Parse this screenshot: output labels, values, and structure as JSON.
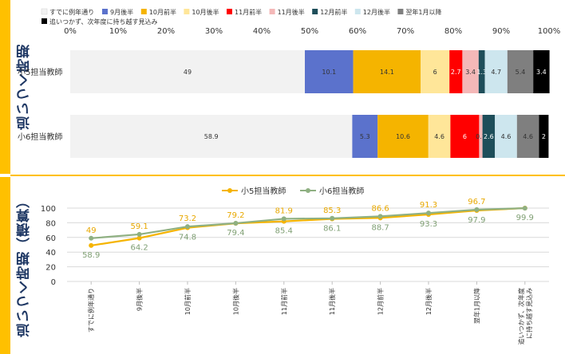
{
  "titles": {
    "top": "追いつく時期",
    "bottom": "追いつく時期（積算）"
  },
  "colors": {
    "accent": "#ffc000",
    "title": "#1f3864"
  },
  "chart_data": [
    {
      "type": "bar",
      "subtype": "stacked-100-horizontal",
      "xlim": [
        0,
        100
      ],
      "x_ticks": [
        "0%",
        "10%",
        "20%",
        "30%",
        "40%",
        "50%",
        "60%",
        "70%",
        "80%",
        "90%",
        "100%"
      ],
      "legend_position": "top",
      "categories": [
        "小5担当教師",
        "小6担当教師"
      ],
      "series": [
        {
          "name": "すでに例年通り",
          "color": "#f2f2f2",
          "values": [
            49,
            58.9
          ],
          "labels": [
            "49",
            "58.9"
          ]
        },
        {
          "name": "9月後半",
          "color": "#5b72cc",
          "values": [
            10.1,
            5.3
          ],
          "labels": [
            "10.1",
            "5.3"
          ]
        },
        {
          "name": "10月前半",
          "color": "#f5b400",
          "values": [
            14.1,
            10.6
          ],
          "labels": [
            "14.1",
            "10.6"
          ]
        },
        {
          "name": "10月後半",
          "color": "#ffe699",
          "values": [
            6,
            4.6
          ],
          "labels": [
            "6",
            "4.6"
          ]
        },
        {
          "name": "11月前半",
          "color": "#ff0000",
          "values": [
            2.7,
            6
          ],
          "labels": [
            "2.7",
            "6"
          ]
        },
        {
          "name": "11月後半",
          "color": "#f4b8b8",
          "values": [
            3.4,
            0.7
          ],
          "labels": [
            "3.4",
            "0.7"
          ]
        },
        {
          "name": "12月前半",
          "color": "#1e4e5a",
          "values": [
            1.3,
            2.6
          ],
          "labels": [
            "1.3",
            "2.6"
          ]
        },
        {
          "name": "12月後半",
          "color": "#cde6ee",
          "values": [
            4.7,
            4.6
          ],
          "labels": [
            "4.7",
            "4.6"
          ]
        },
        {
          "name": "翌年1月以降",
          "color": "#7f7f7f",
          "values": [
            5.4,
            4.6
          ],
          "labels": [
            "5.4",
            "4.6"
          ]
        },
        {
          "name": "追いつかず、次年度に持ち越す見込み",
          "color": "#000000",
          "values": [
            3.4,
            2
          ],
          "labels": [
            "3.4",
            "2"
          ]
        }
      ]
    },
    {
      "type": "line",
      "legend_position": "top",
      "ylim": [
        0,
        100
      ],
      "y_ticks": [
        0,
        20,
        40,
        60,
        80,
        100
      ],
      "categories": [
        "すでに例年通り",
        "9月後半",
        "10月前半",
        "10月後半",
        "11月前半",
        "11月後半",
        "12月前半",
        "12月後半",
        "翌年1月以降",
        "追いつかず、次年度に持ち越す見込み"
      ],
      "series": [
        {
          "name": "小5担当教師",
          "color": "#f5b400",
          "values": [
            49,
            59.1,
            73.2,
            79.2,
            81.9,
            85.3,
            86.6,
            91.3,
            96.7,
            100
          ],
          "labels": [
            "49",
            "59.1",
            "73.2",
            "79.2",
            "81.9",
            "85.3",
            "86.6",
            "91.3",
            "96.7",
            ""
          ]
        },
        {
          "name": "小6担当教師",
          "color": "#8fb082",
          "values": [
            58.9,
            64.2,
            74.8,
            79.4,
            85.4,
            86.1,
            88.7,
            93.3,
            97.9,
            99.9
          ],
          "labels": [
            "58.9",
            "64.2",
            "74.8",
            "79.4",
            "85.4",
            "86.1",
            "88.7",
            "93.3",
            "97.9",
            "99.9"
          ]
        }
      ]
    }
  ]
}
